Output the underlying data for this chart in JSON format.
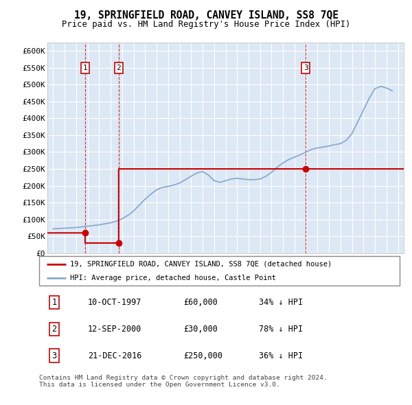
{
  "title": "19, SPRINGFIELD ROAD, CANVEY ISLAND, SS8 7QE",
  "subtitle": "Price paid vs. HM Land Registry's House Price Index (HPI)",
  "background_color": "#ffffff",
  "plot_background": "#dde8f5",
  "grid_color": "#ffffff",
  "sale_color": "#cc0000",
  "hpi_color": "#88aad0",
  "sale_transactions": [
    {
      "date": 1997.78,
      "price": 60000
    },
    {
      "date": 2000.7,
      "price": 30000
    },
    {
      "date": 2016.97,
      "price": 250000
    }
  ],
  "transaction_labels": [
    "1",
    "2",
    "3"
  ],
  "legend_sale": "19, SPRINGFIELD ROAD, CANVEY ISLAND, SS8 7QE (detached house)",
  "legend_hpi": "HPI: Average price, detached house, Castle Point",
  "table_data": [
    [
      "1",
      "10-OCT-1997",
      "£60,000",
      "34% ↓ HPI"
    ],
    [
      "2",
      "12-SEP-2000",
      "£30,000",
      "78% ↓ HPI"
    ],
    [
      "3",
      "21-DEC-2016",
      "£250,000",
      "36% ↓ HPI"
    ]
  ],
  "footnote": "Contains HM Land Registry data © Crown copyright and database right 2024.\nThis data is licensed under the Open Government Licence v3.0.",
  "ylim": [
    0,
    625000
  ],
  "yticks": [
    0,
    50000,
    100000,
    150000,
    200000,
    250000,
    300000,
    350000,
    400000,
    450000,
    500000,
    550000,
    600000
  ],
  "xlim": [
    1994.5,
    2025.5
  ],
  "hpi_data": [
    [
      1995.0,
      72000
    ],
    [
      1995.5,
      73000
    ],
    [
      1996.0,
      74000
    ],
    [
      1996.5,
      75000
    ],
    [
      1997.0,
      76000
    ],
    [
      1997.5,
      78000
    ],
    [
      1998.0,
      80000
    ],
    [
      1998.5,
      82000
    ],
    [
      1999.0,
      84000
    ],
    [
      1999.5,
      87000
    ],
    [
      2000.0,
      90000
    ],
    [
      2000.5,
      95000
    ],
    [
      2001.0,
      102000
    ],
    [
      2001.5,
      112000
    ],
    [
      2002.0,
      125000
    ],
    [
      2002.5,
      143000
    ],
    [
      2003.0,
      160000
    ],
    [
      2003.5,
      175000
    ],
    [
      2004.0,
      188000
    ],
    [
      2004.5,
      195000
    ],
    [
      2005.0,
      198000
    ],
    [
      2005.5,
      202000
    ],
    [
      2006.0,
      208000
    ],
    [
      2006.5,
      218000
    ],
    [
      2007.0,
      228000
    ],
    [
      2007.5,
      238000
    ],
    [
      2008.0,
      242000
    ],
    [
      2008.5,
      232000
    ],
    [
      2009.0,
      215000
    ],
    [
      2009.5,
      210000
    ],
    [
      2010.0,
      215000
    ],
    [
      2010.5,
      220000
    ],
    [
      2011.0,
      222000
    ],
    [
      2011.5,
      220000
    ],
    [
      2012.0,
      218000
    ],
    [
      2012.5,
      218000
    ],
    [
      2013.0,
      220000
    ],
    [
      2013.5,
      228000
    ],
    [
      2014.0,
      240000
    ],
    [
      2014.5,
      255000
    ],
    [
      2015.0,
      268000
    ],
    [
      2015.5,
      278000
    ],
    [
      2016.0,
      285000
    ],
    [
      2016.5,
      292000
    ],
    [
      2017.0,
      300000
    ],
    [
      2017.5,
      308000
    ],
    [
      2018.0,
      312000
    ],
    [
      2018.5,
      315000
    ],
    [
      2019.0,
      318000
    ],
    [
      2019.5,
      322000
    ],
    [
      2020.0,
      325000
    ],
    [
      2020.5,
      335000
    ],
    [
      2021.0,
      355000
    ],
    [
      2021.5,
      390000
    ],
    [
      2022.0,
      425000
    ],
    [
      2022.5,
      460000
    ],
    [
      2023.0,
      488000
    ],
    [
      2023.5,
      495000
    ],
    [
      2024.0,
      490000
    ],
    [
      2024.5,
      482000
    ]
  ]
}
